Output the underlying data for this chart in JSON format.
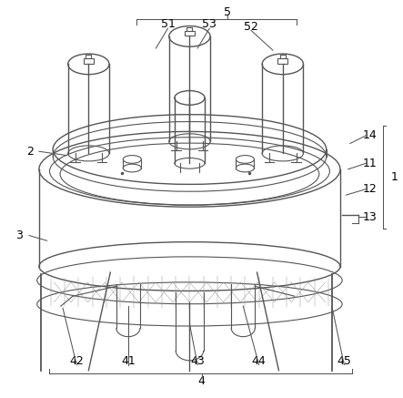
{
  "bg_color": "#ffffff",
  "line_color": "#555555",
  "line_width": 0.8,
  "label_fontsize": 9
}
